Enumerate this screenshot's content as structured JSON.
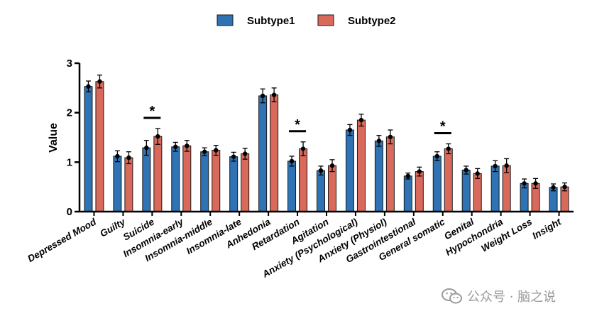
{
  "chart_data": {
    "type": "bar",
    "ylabel": "Value",
    "ylim": [
      0,
      3
    ],
    "yticks": [
      "0",
      "1",
      "2",
      "3"
    ],
    "legend_position": "top-center",
    "categories": [
      "Depressed Mood",
      "Guilty",
      "Suicide",
      "Insomnia-early",
      "Insomnia-middle",
      "Insomnia-late",
      "Anhedonia",
      "Retardation",
      "Agitation",
      "Anxiety (Psychological)",
      "Anxiety (Physiol)",
      "Gastrointestional",
      "General somatic",
      "Genital",
      "Hypochondria",
      "Weight Loss",
      "Insight"
    ],
    "series": [
      {
        "name": "Subtype1",
        "color": "#2f73b4",
        "values": [
          2.53,
          1.12,
          1.29,
          1.31,
          1.21,
          1.11,
          2.34,
          1.02,
          0.83,
          1.65,
          1.43,
          0.72,
          1.12,
          0.84,
          0.92,
          0.57,
          0.49
        ],
        "errors": [
          0.11,
          0.11,
          0.15,
          0.09,
          0.08,
          0.09,
          0.14,
          0.1,
          0.09,
          0.11,
          0.11,
          0.06,
          0.09,
          0.08,
          0.11,
          0.09,
          0.07
        ]
      },
      {
        "name": "Subtype2",
        "color": "#d9695a",
        "values": [
          2.63,
          1.09,
          1.52,
          1.33,
          1.24,
          1.17,
          2.36,
          1.27,
          0.93,
          1.85,
          1.51,
          0.81,
          1.27,
          0.77,
          0.93,
          0.57,
          0.5
        ],
        "errors": [
          0.13,
          0.12,
          0.16,
          0.11,
          0.1,
          0.11,
          0.14,
          0.14,
          0.12,
          0.12,
          0.14,
          0.09,
          0.1,
          0.1,
          0.14,
          0.1,
          0.08
        ]
      }
    ],
    "significance": [
      {
        "category": "Suicide",
        "label": "*"
      },
      {
        "category": "Retardation",
        "label": "*"
      },
      {
        "category": "General somatic",
        "label": "*"
      }
    ]
  },
  "watermark": {
    "text": "公众号 · 脑之说",
    "icon": "wechat-icon"
  }
}
